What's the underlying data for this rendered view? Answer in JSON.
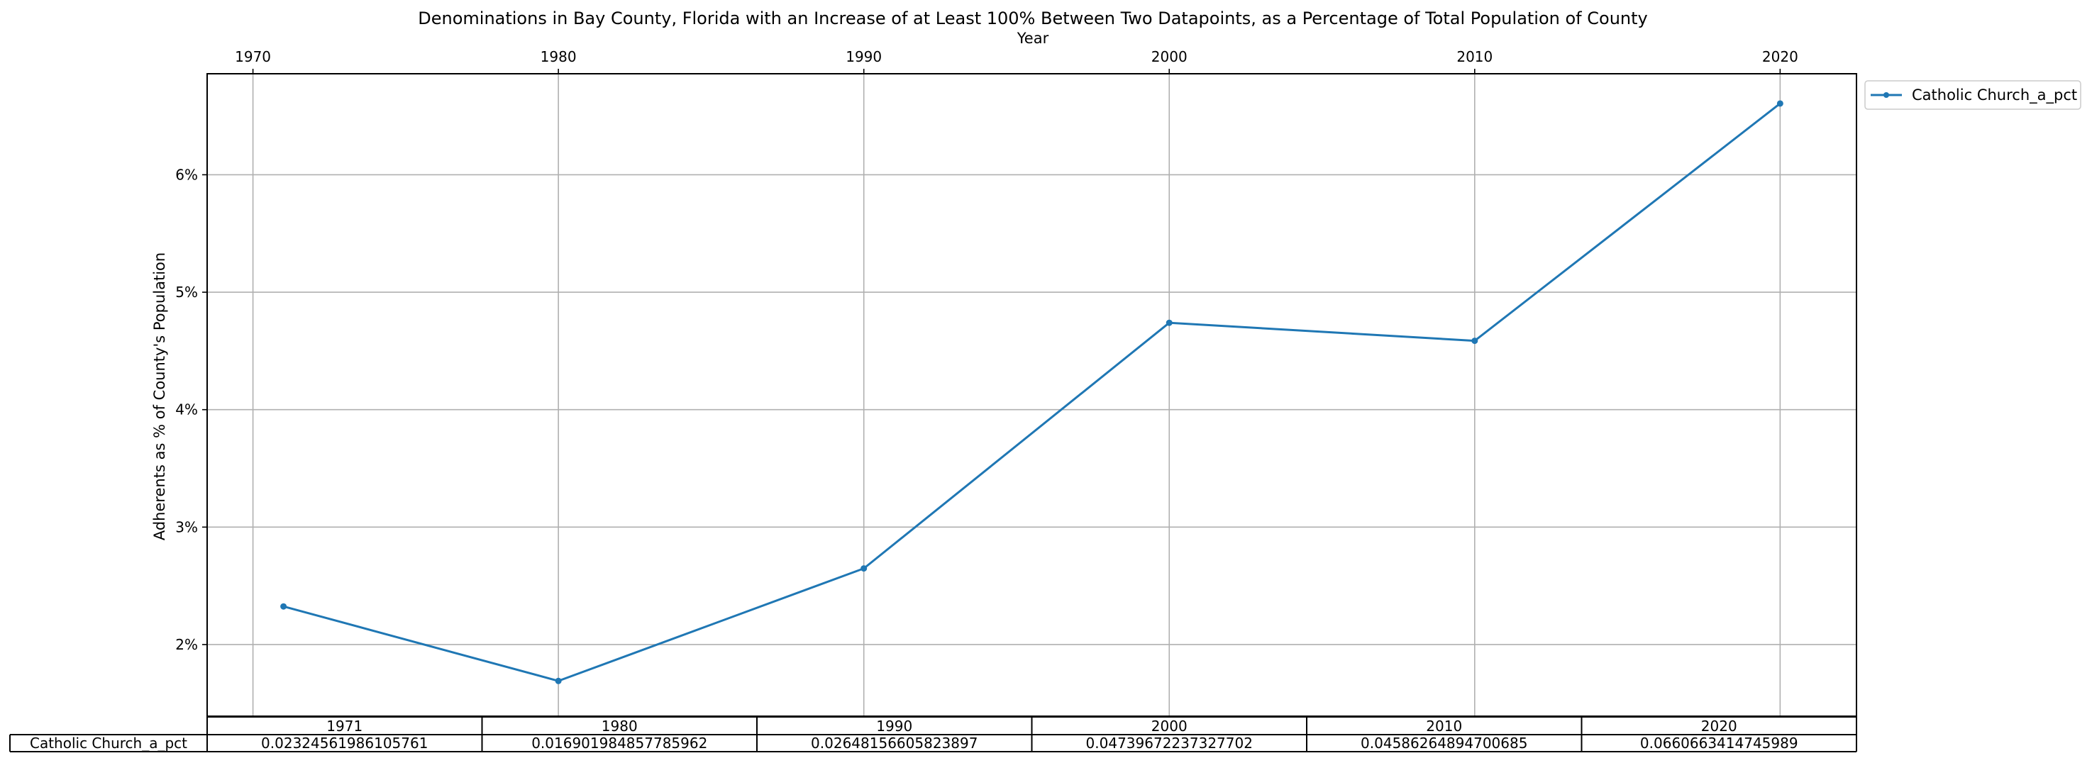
{
  "chart_data": {
    "type": "line",
    "title": "Denominations in Bay County, Florida with an Increase of at Least 100% Between Two Datapoints, as a Percentage of Total Population of County",
    "xlabel": "Year",
    "ylabel": "Adherents as % of County's Population",
    "x_ticks": [
      1970,
      1980,
      1990,
      2000,
      2010,
      2020
    ],
    "x_tick_labels": [
      "1970",
      "1980",
      "1990",
      "2000",
      "2010",
      "2020"
    ],
    "y_ticks": [
      0.02,
      0.03,
      0.04,
      0.05,
      0.06
    ],
    "y_tick_labels": [
      "2%",
      "3%",
      "4%",
      "5%",
      "6%"
    ],
    "xlim": [
      1968.5,
      2022.5
    ],
    "ylim": [
      0.0139,
      0.0686
    ],
    "x_axis_position": "top",
    "grid": true,
    "legend_position": "outside upper right",
    "series": [
      {
        "name": "Catholic Church_a_pct",
        "color": "#1f77b4",
        "marker": "point",
        "x": [
          1971,
          1980,
          1990,
          2000,
          2010,
          2020
        ],
        "values": [
          0.02324561986105761,
          0.016901984857785962,
          0.02648156605823897,
          0.04739672237327702,
          0.04586264894700685,
          0.0660663414745989
        ]
      }
    ],
    "table": {
      "col_labels": [
        "1971",
        "1980",
        "1990",
        "2000",
        "2010",
        "2020"
      ],
      "row_label": "Catholic Church_a_pct",
      "cells": [
        "0.02324561986105761",
        "0.016901984857785962",
        "0.02648156605823897",
        "0.04739672237327702",
        "0.04586264894700685",
        "0.0660663414745989"
      ]
    }
  }
}
